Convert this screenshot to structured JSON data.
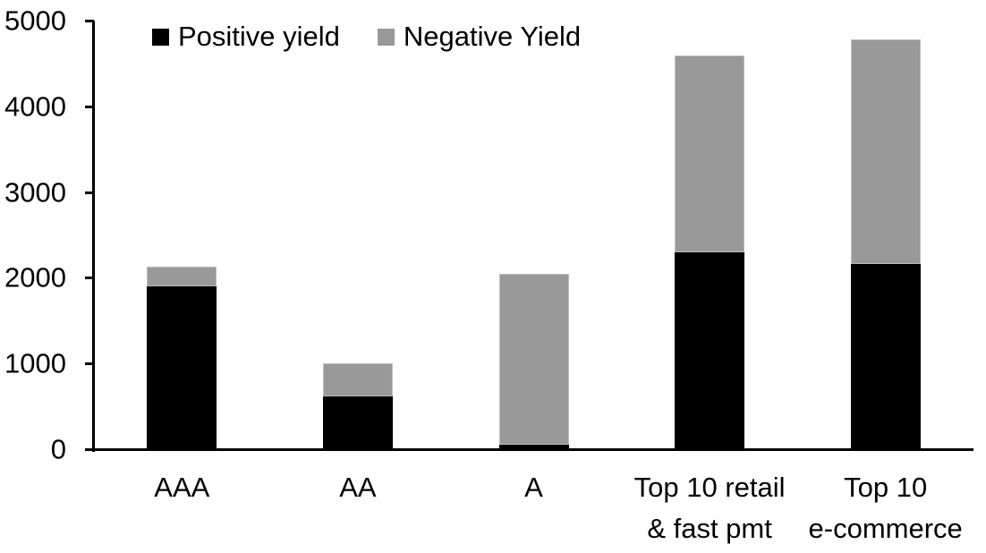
{
  "chart_data": {
    "type": "bar",
    "stacked": true,
    "title": "",
    "xlabel": "",
    "ylabel": "",
    "categories": [
      "AAA",
      "AA",
      "A",
      "Top 10 retail\n& fast pmt",
      "Top 10\ne-commerce"
    ],
    "series": [
      {
        "name": "Positive yield",
        "color": "#000000",
        "values": [
          1900,
          620,
          50,
          2300,
          2160
        ]
      },
      {
        "name": "Negative Yield",
        "color": "#999999",
        "values": [
          230,
          380,
          2000,
          2290,
          2620
        ]
      }
    ],
    "ylim": [
      0,
      5000
    ],
    "yticks": [
      0,
      1000,
      2000,
      3000,
      4000,
      5000
    ],
    "ytick_labels": [
      "0",
      "1000",
      "2000",
      "3000",
      "4000",
      "5000"
    ],
    "legend_position": "top",
    "legend_labels": [
      "Positive yield",
      "Negative Yield"
    ],
    "grid": false,
    "axis_color": "#000000",
    "background_color": "#ffffff"
  }
}
